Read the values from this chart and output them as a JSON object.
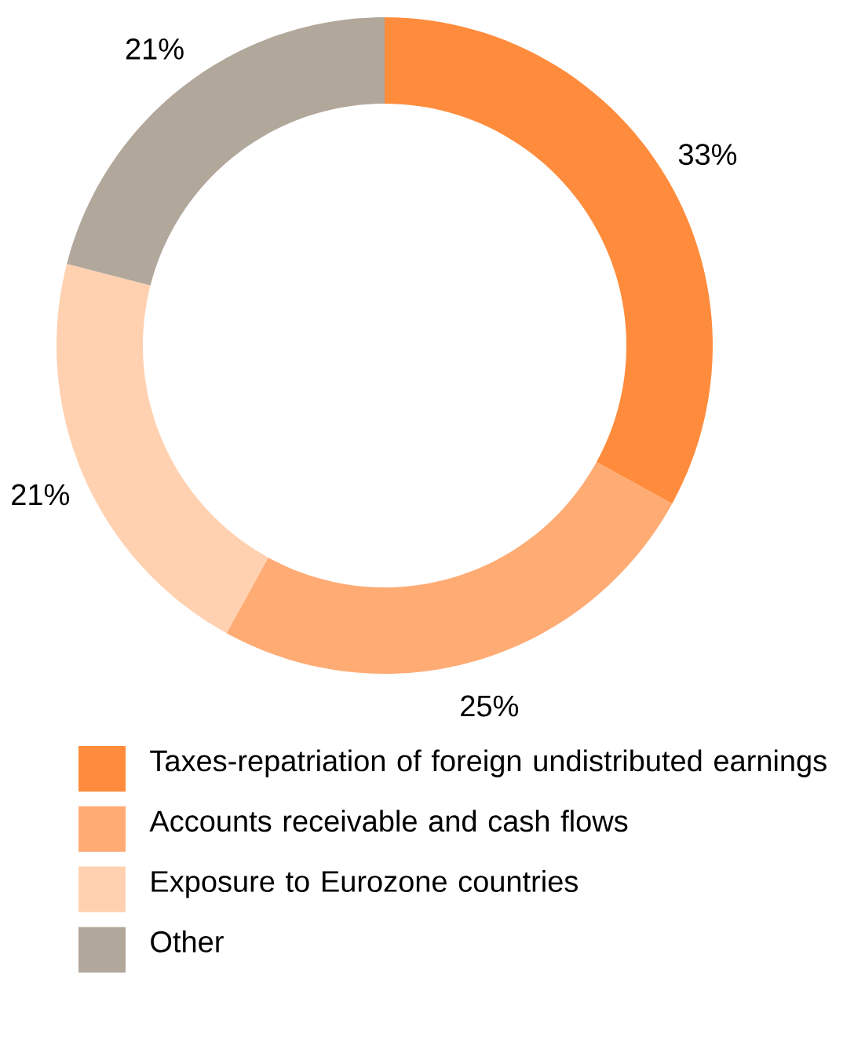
{
  "chart_data": {
    "type": "donut",
    "categories": [
      "Taxes-repatriation of foreign undistributed earnings",
      "Accounts receivable and cash flows",
      "Exposure to Eurozone countries",
      "Other"
    ],
    "values": [
      33,
      25,
      21,
      21
    ],
    "colors": [
      "#ff8c3c",
      "#ffab74",
      "#ffd1b0",
      "#b1a79b"
    ],
    "value_labels": [
      "33%",
      "25%",
      "21%",
      "21%"
    ],
    "legend": "bottom"
  }
}
